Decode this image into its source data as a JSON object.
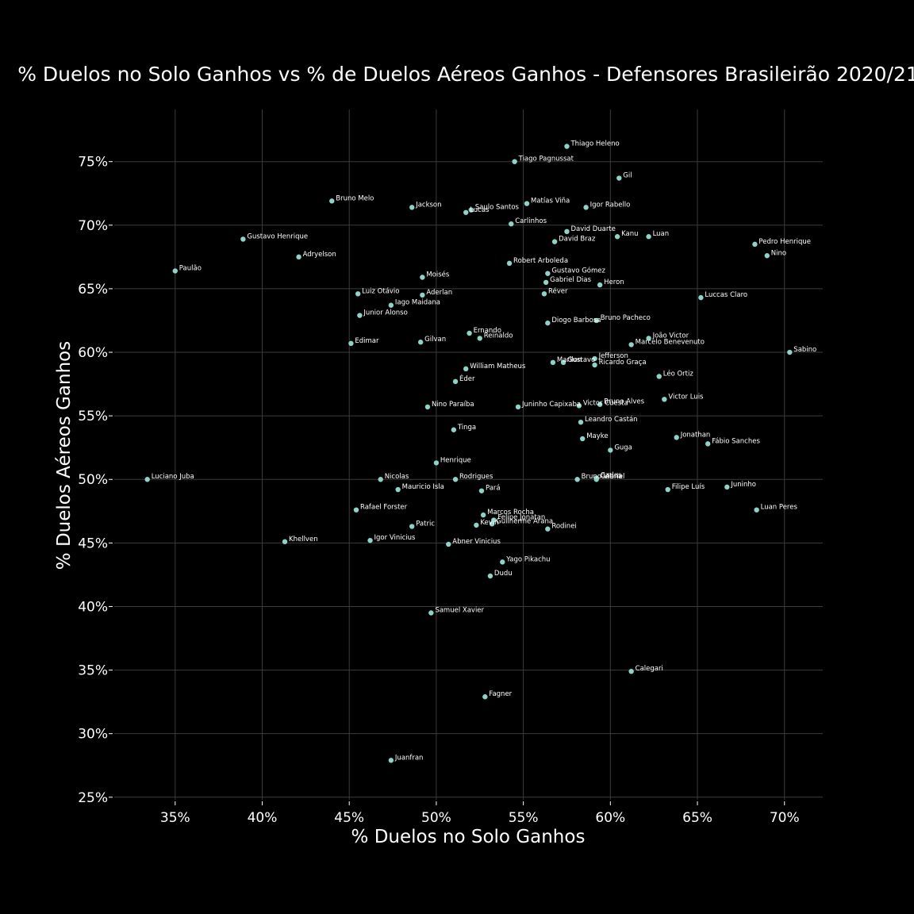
{
  "chart_data": {
    "type": "scatter",
    "title": "% Duelos no Solo Ganhos vs % de Duelos Aéreos Ganhos - Defensores Brasileirão 2020/21",
    "xlabel": "% Duelos no Solo Ganhos",
    "ylabel": "% Duelos Aéreos Ganhos",
    "xlim": [
      31.5,
      72.2
    ],
    "ylim": [
      24.8,
      79.1
    ],
    "xticks": [
      35,
      40,
      45,
      50,
      55,
      60,
      65,
      70
    ],
    "yticks": [
      25,
      30,
      35,
      40,
      45,
      50,
      55,
      60,
      65,
      70,
      75
    ],
    "xtick_labels": [
      "35%",
      "40%",
      "45%",
      "50%",
      "55%",
      "60%",
      "65%",
      "70%"
    ],
    "ytick_labels": [
      "25%",
      "30%",
      "35%",
      "40%",
      "45%",
      "50%",
      "55%",
      "60%",
      "65%",
      "70%",
      "75%"
    ],
    "grid": true,
    "point_color": "#8dd3c7",
    "background": "#000000",
    "points": [
      {
        "name": "Thiago Heleno",
        "x": 57.5,
        "y": 76.2
      },
      {
        "name": "Tiago Pagnussat",
        "x": 54.5,
        "y": 75.0
      },
      {
        "name": "Gil",
        "x": 60.5,
        "y": 73.7
      },
      {
        "name": "Bruno Melo",
        "x": 44.0,
        "y": 71.9
      },
      {
        "name": "Jackson",
        "x": 48.6,
        "y": 71.4
      },
      {
        "name": "Lucas",
        "x": 51.7,
        "y": 71.0
      },
      {
        "name": "Saulo Santos",
        "x": 52.0,
        "y": 71.2
      },
      {
        "name": "Matías Viña",
        "x": 55.2,
        "y": 71.7
      },
      {
        "name": "Igor Rabello",
        "x": 58.6,
        "y": 71.4
      },
      {
        "name": "Carlinhos",
        "x": 54.3,
        "y": 70.1
      },
      {
        "name": "David Duarte",
        "x": 57.5,
        "y": 69.5
      },
      {
        "name": "Kanu",
        "x": 60.4,
        "y": 69.1
      },
      {
        "name": "Luan",
        "x": 62.2,
        "y": 69.1
      },
      {
        "name": "David Braz",
        "x": 56.8,
        "y": 68.7
      },
      {
        "name": "Gustavo Henrique",
        "x": 38.9,
        "y": 68.9
      },
      {
        "name": "Pedro Henrique",
        "x": 68.3,
        "y": 68.5
      },
      {
        "name": "Adryelson",
        "x": 42.1,
        "y": 67.5
      },
      {
        "name": "Nino",
        "x": 69.0,
        "y": 67.6
      },
      {
        "name": "Robert Arboleda",
        "x": 54.2,
        "y": 67.0
      },
      {
        "name": "Paulão",
        "x": 35.0,
        "y": 66.4
      },
      {
        "name": "Gustavo Gómez",
        "x": 56.4,
        "y": 66.2
      },
      {
        "name": "Moisés",
        "x": 49.2,
        "y": 65.9
      },
      {
        "name": "Gabriel Dias",
        "x": 56.3,
        "y": 65.5
      },
      {
        "name": "Heron",
        "x": 59.4,
        "y": 65.3
      },
      {
        "name": "Luiz Otávio",
        "x": 45.5,
        "y": 64.6
      },
      {
        "name": "Aderlan",
        "x": 49.2,
        "y": 64.5
      },
      {
        "name": "Réver",
        "x": 56.2,
        "y": 64.6
      },
      {
        "name": "Luccas Claro",
        "x": 65.2,
        "y": 64.3
      },
      {
        "name": "Iago Maidana",
        "x": 47.4,
        "y": 63.7
      },
      {
        "name": "Junior Alonso",
        "x": 45.6,
        "y": 62.9
      },
      {
        "name": "Diogo Barbosa",
        "x": 56.4,
        "y": 62.3
      },
      {
        "name": "Bruno Pacheco",
        "x": 59.2,
        "y": 62.5
      },
      {
        "name": "Ernando",
        "x": 51.9,
        "y": 61.5
      },
      {
        "name": "Reinaldo",
        "x": 52.5,
        "y": 61.1
      },
      {
        "name": "João Victor",
        "x": 62.2,
        "y": 61.1
      },
      {
        "name": "Edimar",
        "x": 45.1,
        "y": 60.7
      },
      {
        "name": "Gilvan",
        "x": 49.1,
        "y": 60.8
      },
      {
        "name": "Marcelo Benevenuto",
        "x": 61.2,
        "y": 60.6
      },
      {
        "name": "Sabino",
        "x": 70.3,
        "y": 60.0
      },
      {
        "name": "Jefferson",
        "x": 59.1,
        "y": 59.5
      },
      {
        "name": "Marllon",
        "x": 56.7,
        "y": 59.2
      },
      {
        "name": "Gustavo",
        "x": 57.3,
        "y": 59.2
      },
      {
        "name": "Ricardo Graça",
        "x": 59.1,
        "y": 59.0
      },
      {
        "name": "William Matheus",
        "x": 51.7,
        "y": 58.7
      },
      {
        "name": "Léo Ortiz",
        "x": 62.8,
        "y": 58.1
      },
      {
        "name": "Éder",
        "x": 51.1,
        "y": 57.7
      },
      {
        "name": "Victor Luis",
        "x": 63.1,
        "y": 56.3
      },
      {
        "name": "Nino Paraíba",
        "x": 49.5,
        "y": 55.7
      },
      {
        "name": "Juninho Capixaba",
        "x": 54.7,
        "y": 55.7
      },
      {
        "name": "Victor Cuesta",
        "x": 58.2,
        "y": 55.8
      },
      {
        "name": "Bruno Alves",
        "x": 59.4,
        "y": 55.9
      },
      {
        "name": "Leandro Castán",
        "x": 58.3,
        "y": 54.5
      },
      {
        "name": "Tinga",
        "x": 51.0,
        "y": 53.9
      },
      {
        "name": "Mayke",
        "x": 58.4,
        "y": 53.2
      },
      {
        "name": "Jonathan",
        "x": 63.8,
        "y": 53.3
      },
      {
        "name": "Fábio Sanches",
        "x": 65.6,
        "y": 52.8
      },
      {
        "name": "Guga",
        "x": 60.0,
        "y": 52.3
      },
      {
        "name": "Henrique",
        "x": 50.0,
        "y": 51.3
      },
      {
        "name": "Luciano Juba",
        "x": 33.4,
        "y": 50.0
      },
      {
        "name": "Nicolas",
        "x": 46.8,
        "y": 50.0
      },
      {
        "name": "Rodrigues",
        "x": 51.1,
        "y": 50.0
      },
      {
        "name": "Bruno Viana",
        "x": 58.1,
        "y": 50.0
      },
      {
        "name": "Gabriel",
        "x": 59.2,
        "y": 50.0
      },
      {
        "name": "Carlos",
        "x": 59.2,
        "y": 50.1
      },
      {
        "name": "Juninho",
        "x": 66.7,
        "y": 49.4
      },
      {
        "name": "Mauricio Isla",
        "x": 47.8,
        "y": 49.2
      },
      {
        "name": "Pará",
        "x": 52.6,
        "y": 49.1
      },
      {
        "name": "Filipe Luís",
        "x": 63.3,
        "y": 49.2
      },
      {
        "name": "Rafael Forster",
        "x": 45.4,
        "y": 47.6
      },
      {
        "name": "Luan Peres",
        "x": 68.4,
        "y": 47.6
      },
      {
        "name": "Marcos Rocha",
        "x": 52.7,
        "y": 47.2
      },
      {
        "name": "Felipe Jonatan",
        "x": 53.3,
        "y": 46.8
      },
      {
        "name": "Guilherme Arana",
        "x": 53.2,
        "y": 46.5
      },
      {
        "name": "Kevin",
        "x": 52.3,
        "y": 46.4
      },
      {
        "name": "Patric",
        "x": 48.6,
        "y": 46.3
      },
      {
        "name": "Rodinei",
        "x": 56.4,
        "y": 46.1
      },
      {
        "name": "Khellven",
        "x": 41.3,
        "y": 45.1
      },
      {
        "name": "Igor Vinicius",
        "x": 46.2,
        "y": 45.2
      },
      {
        "name": "Abner Vinicius",
        "x": 50.7,
        "y": 44.9
      },
      {
        "name": "Yago Pikachu",
        "x": 53.8,
        "y": 43.5
      },
      {
        "name": "Dudu",
        "x": 53.1,
        "y": 42.4
      },
      {
        "name": "Samuel Xavier",
        "x": 49.7,
        "y": 39.5
      },
      {
        "name": "Calegari",
        "x": 61.2,
        "y": 34.9
      },
      {
        "name": "Fagner",
        "x": 52.8,
        "y": 32.9
      },
      {
        "name": "Juanfran",
        "x": 47.4,
        "y": 27.9
      }
    ]
  }
}
